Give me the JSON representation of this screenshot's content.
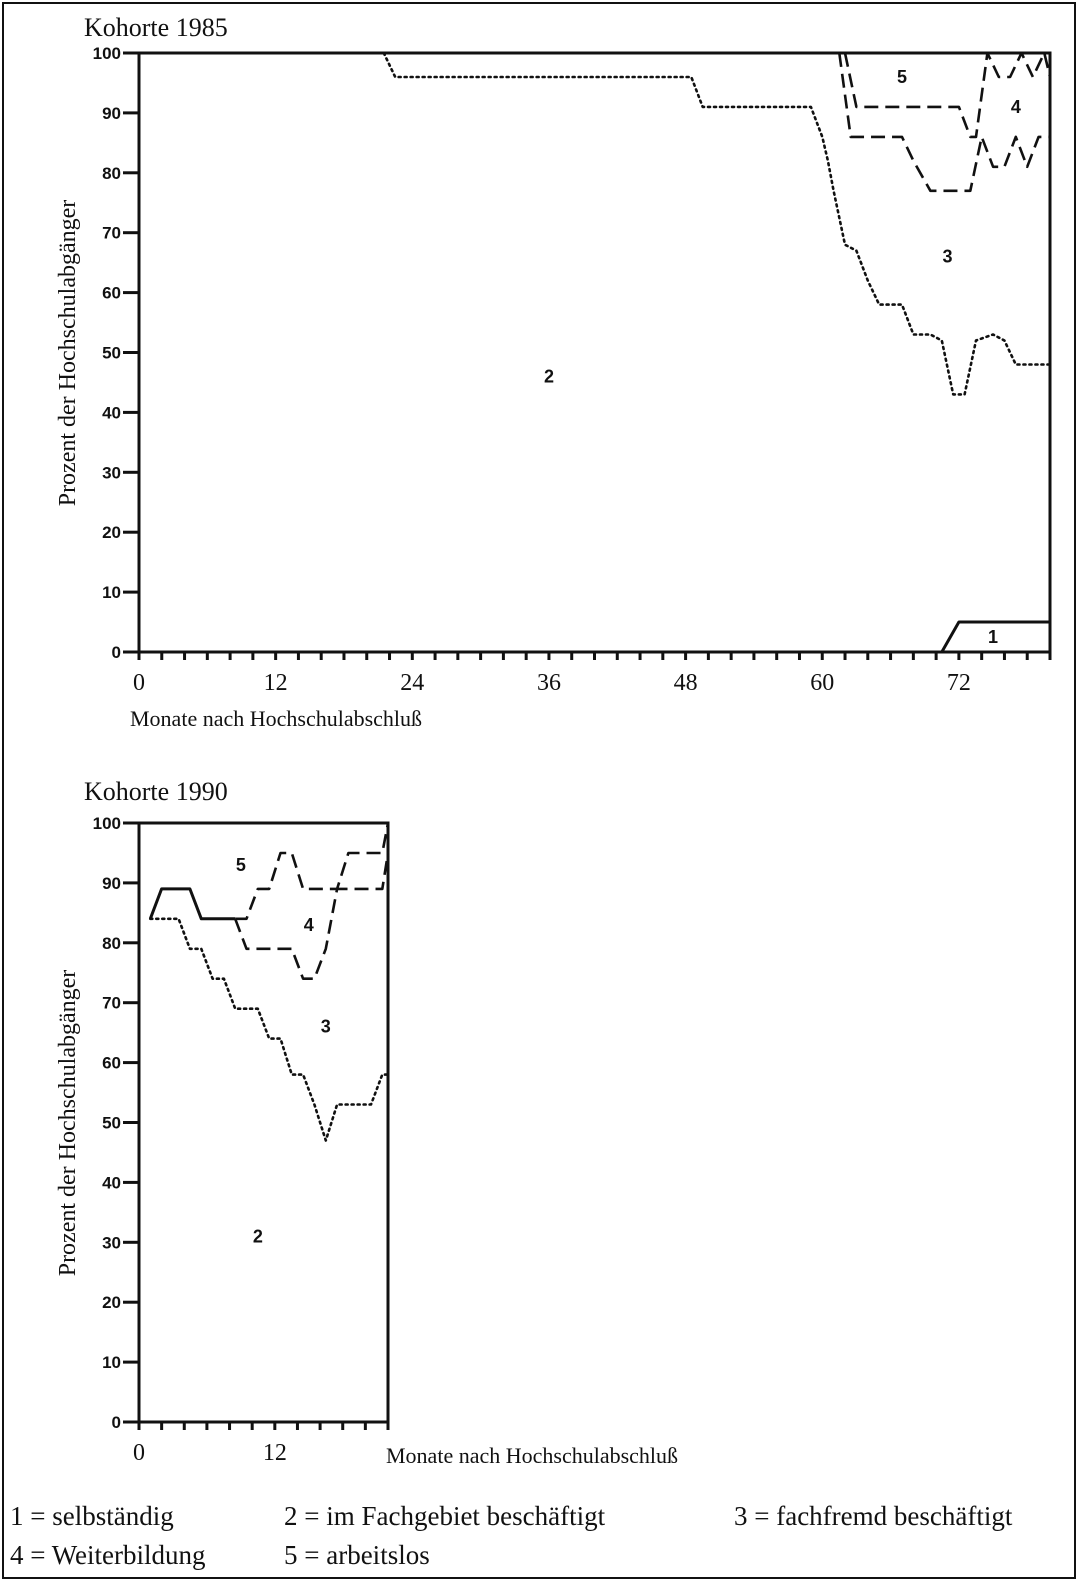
{
  "chart_data": [
    {
      "type": "area",
      "title": "Kohorte 1985",
      "xlabel": "Monate nach Hochschulabschluß",
      "ylabel": "Prozent der Hochschulabgänger",
      "xlim": [
        0,
        80
      ],
      "ylim": [
        0,
        100
      ],
      "xticks": [
        0,
        12,
        24,
        36,
        48,
        60,
        72
      ],
      "yticks": [
        0,
        10,
        20,
        30,
        40,
        50,
        60,
        70,
        80,
        90,
        100
      ],
      "region_labels": [
        {
          "text": "1",
          "x": 75,
          "y": 2.5
        },
        {
          "text": "2",
          "x": 36,
          "y": 46
        },
        {
          "text": "3",
          "x": 71,
          "y": 66
        },
        {
          "text": "4",
          "x": 77,
          "y": 91
        },
        {
          "text": "5",
          "x": 67,
          "y": 96
        }
      ],
      "series": [
        {
          "id": "1",
          "style": "solid",
          "x": [
            70.5,
            72,
            80
          ],
          "y": [
            0,
            5,
            5
          ]
        },
        {
          "id": "2",
          "style": "dotted",
          "x": [
            21.5,
            22.5,
            48.5,
            49.5,
            59,
            60,
            60.5,
            61,
            62,
            63,
            64,
            65,
            67,
            68,
            69.5,
            70.5,
            71.5,
            72.5,
            73.5,
            75,
            76,
            77,
            80
          ],
          "y": [
            100,
            96,
            96,
            91,
            91,
            86,
            82,
            77,
            68,
            67,
            62,
            58,
            58,
            53,
            53,
            52,
            43,
            43,
            52,
            53,
            52,
            48,
            48
          ]
        },
        {
          "id": "3",
          "style": "dashed",
          "x": [
            61.5,
            62.5,
            67,
            68,
            69.5,
            72,
            73,
            74,
            75,
            76,
            77,
            78,
            79,
            80
          ],
          "y": [
            100,
            86,
            86,
            82,
            77,
            77,
            77,
            86,
            81,
            81,
            86,
            81,
            86,
            86
          ]
        },
        {
          "id": "4",
          "style": "dashed",
          "x": [
            62,
            63,
            72,
            73,
            73.5,
            74.5,
            75.5,
            76.5,
            77.5,
            78.5,
            79.5,
            80
          ],
          "y": [
            100,
            91,
            91,
            86,
            86,
            100,
            96,
            96,
            100,
            96,
            100,
            96
          ]
        }
      ]
    },
    {
      "type": "area",
      "title": "Kohorte 1990",
      "xlabel": "Monate nach Hochschulabschluß",
      "ylabel": "Prozent der Hochschulabgänger",
      "xlim": [
        0,
        22
      ],
      "ylim": [
        0,
        100
      ],
      "xticks": [
        0,
        12
      ],
      "yticks": [
        0,
        10,
        20,
        30,
        40,
        50,
        60,
        70,
        80,
        90,
        100
      ],
      "region_labels": [
        {
          "text": "2",
          "x": 10.5,
          "y": 31
        },
        {
          "text": "3",
          "x": 16.5,
          "y": 66
        },
        {
          "text": "4",
          "x": 15,
          "y": 83
        },
        {
          "text": "5",
          "x": 9,
          "y": 93
        }
      ],
      "series": [
        {
          "id": "2",
          "style": "dotted",
          "x": [
            1,
            2.5,
            3.5,
            4.5,
            5.5,
            6.5,
            7.5,
            8.5,
            9.5,
            10.5,
            11.5,
            12.5,
            13.5,
            14.5,
            15.5,
            16.5,
            17.5,
            18.5,
            19.5,
            20.5,
            21.5,
            22
          ],
          "y": [
            84,
            84,
            84,
            79,
            79,
            74,
            74,
            69,
            69,
            69,
            64,
            64,
            58,
            58,
            53,
            47,
            53,
            53,
            53,
            53,
            58,
            58
          ]
        },
        {
          "id": "3",
          "style": "dashed",
          "x": [
            8.5,
            9.5,
            12.5,
            13.5,
            14.5,
            15.5,
            16.5,
            17.5,
            18.5,
            20.5,
            21.5,
            22
          ],
          "y": [
            84,
            79,
            79,
            79,
            74,
            74,
            79,
            89,
            89,
            89,
            89,
            95
          ]
        },
        {
          "id": "4",
          "style": "dashed",
          "x": [
            8.5,
            9.5,
            10.5,
            11.5,
            12.5,
            13.5,
            14.5,
            15.5,
            16.5,
            17.5,
            18.5,
            19.5,
            20.5,
            21.5,
            22
          ],
          "y": [
            84,
            84,
            89,
            89,
            95,
            95,
            89,
            89,
            89,
            89,
            95,
            95,
            95,
            95,
            100
          ]
        },
        {
          "id": "5",
          "style": "solid",
          "x": [
            1,
            2,
            3.5,
            4.5,
            5.5,
            8.5
          ],
          "y": [
            84,
            89,
            89,
            89,
            84,
            84
          ]
        }
      ]
    }
  ],
  "legend": [
    {
      "text": "1 = selbständig"
    },
    {
      "text": "2 = im Fachgebiet beschäftigt"
    },
    {
      "text": "3 = fachfremd beschäftigt"
    },
    {
      "text": "4 = Weiterbildung"
    },
    {
      "text": "5 = arbeitslos"
    }
  ],
  "colors": {
    "ink": "#111111",
    "background": "#ffffff"
  }
}
